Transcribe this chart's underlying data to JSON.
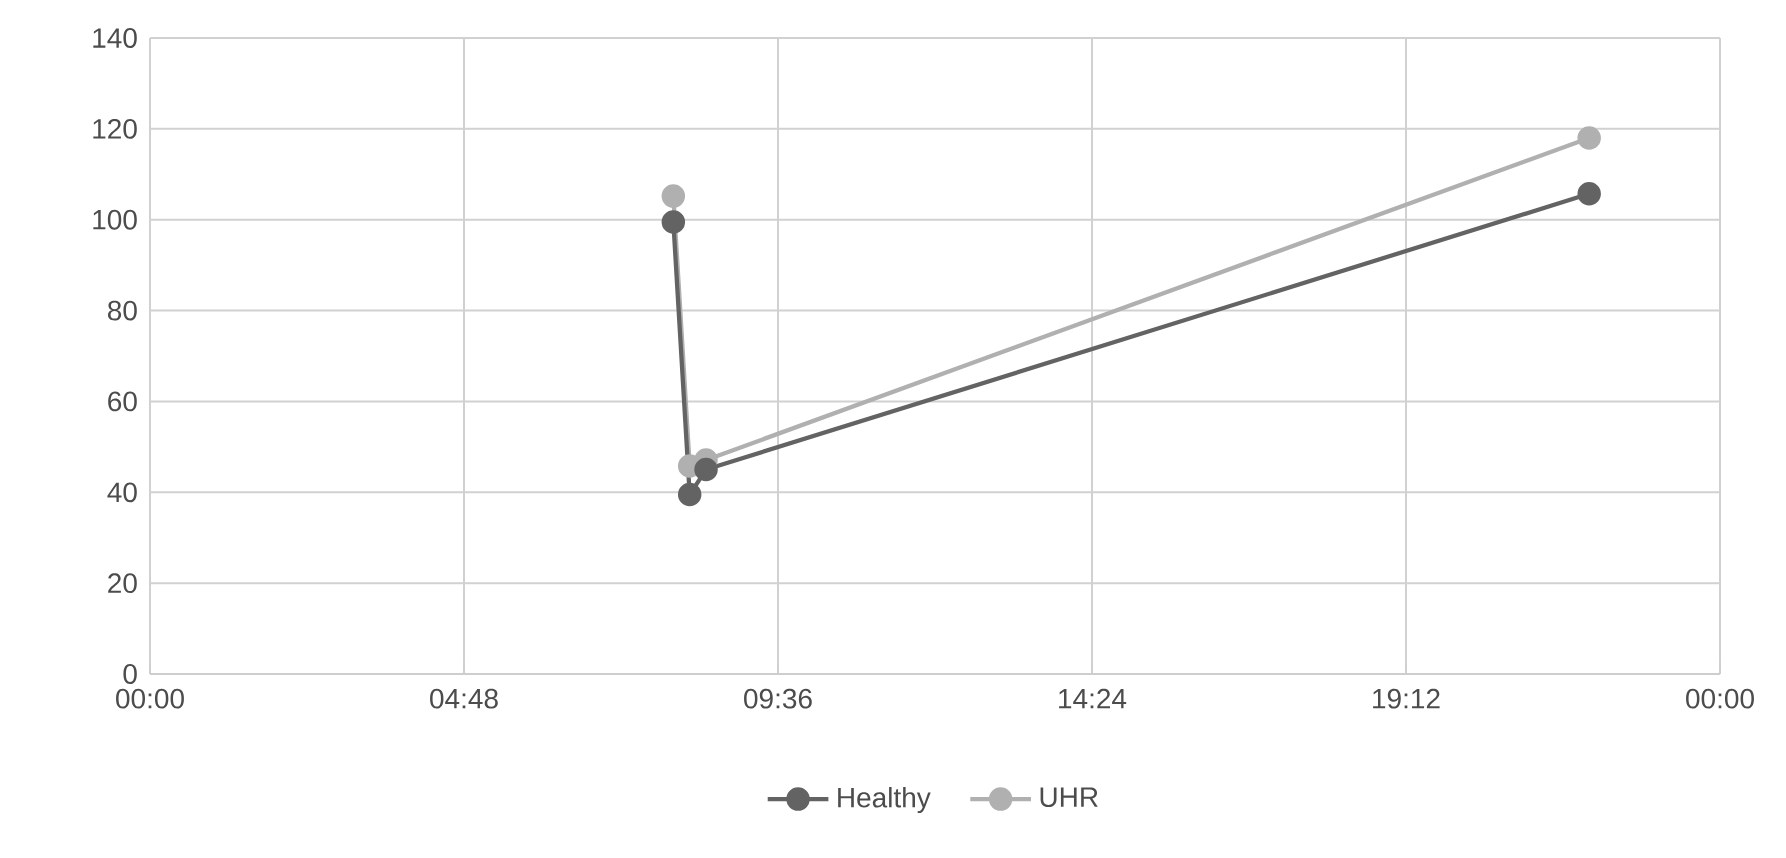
{
  "chart_data": {
    "type": "line",
    "x": [
      8.0,
      8.25,
      8.5,
      22.0
    ],
    "series": [
      {
        "name": "Healthy",
        "color": "#636363",
        "values": [
          99.5,
          39.5,
          45,
          105.7
        ]
      },
      {
        "name": "UHR",
        "color": "#b0b0b0",
        "values": [
          105.2,
          45.8,
          47.1,
          118
        ]
      }
    ],
    "xlim": [
      0,
      24
    ],
    "xticks": [
      {
        "value": 0,
        "label": "00:00"
      },
      {
        "value": 4.8,
        "label": "04:48"
      },
      {
        "value": 9.6,
        "label": "09:36"
      },
      {
        "value": 14.4,
        "label": "14:24"
      },
      {
        "value": 19.2,
        "label": "19:12"
      },
      {
        "value": 24,
        "label": "00:00"
      }
    ],
    "ylim": [
      0,
      140
    ],
    "yticks": [
      0,
      20,
      40,
      60,
      80,
      100,
      120,
      140
    ],
    "grid": true,
    "legend": "bottom",
    "marker": "circle",
    "line_style": "solid"
  }
}
